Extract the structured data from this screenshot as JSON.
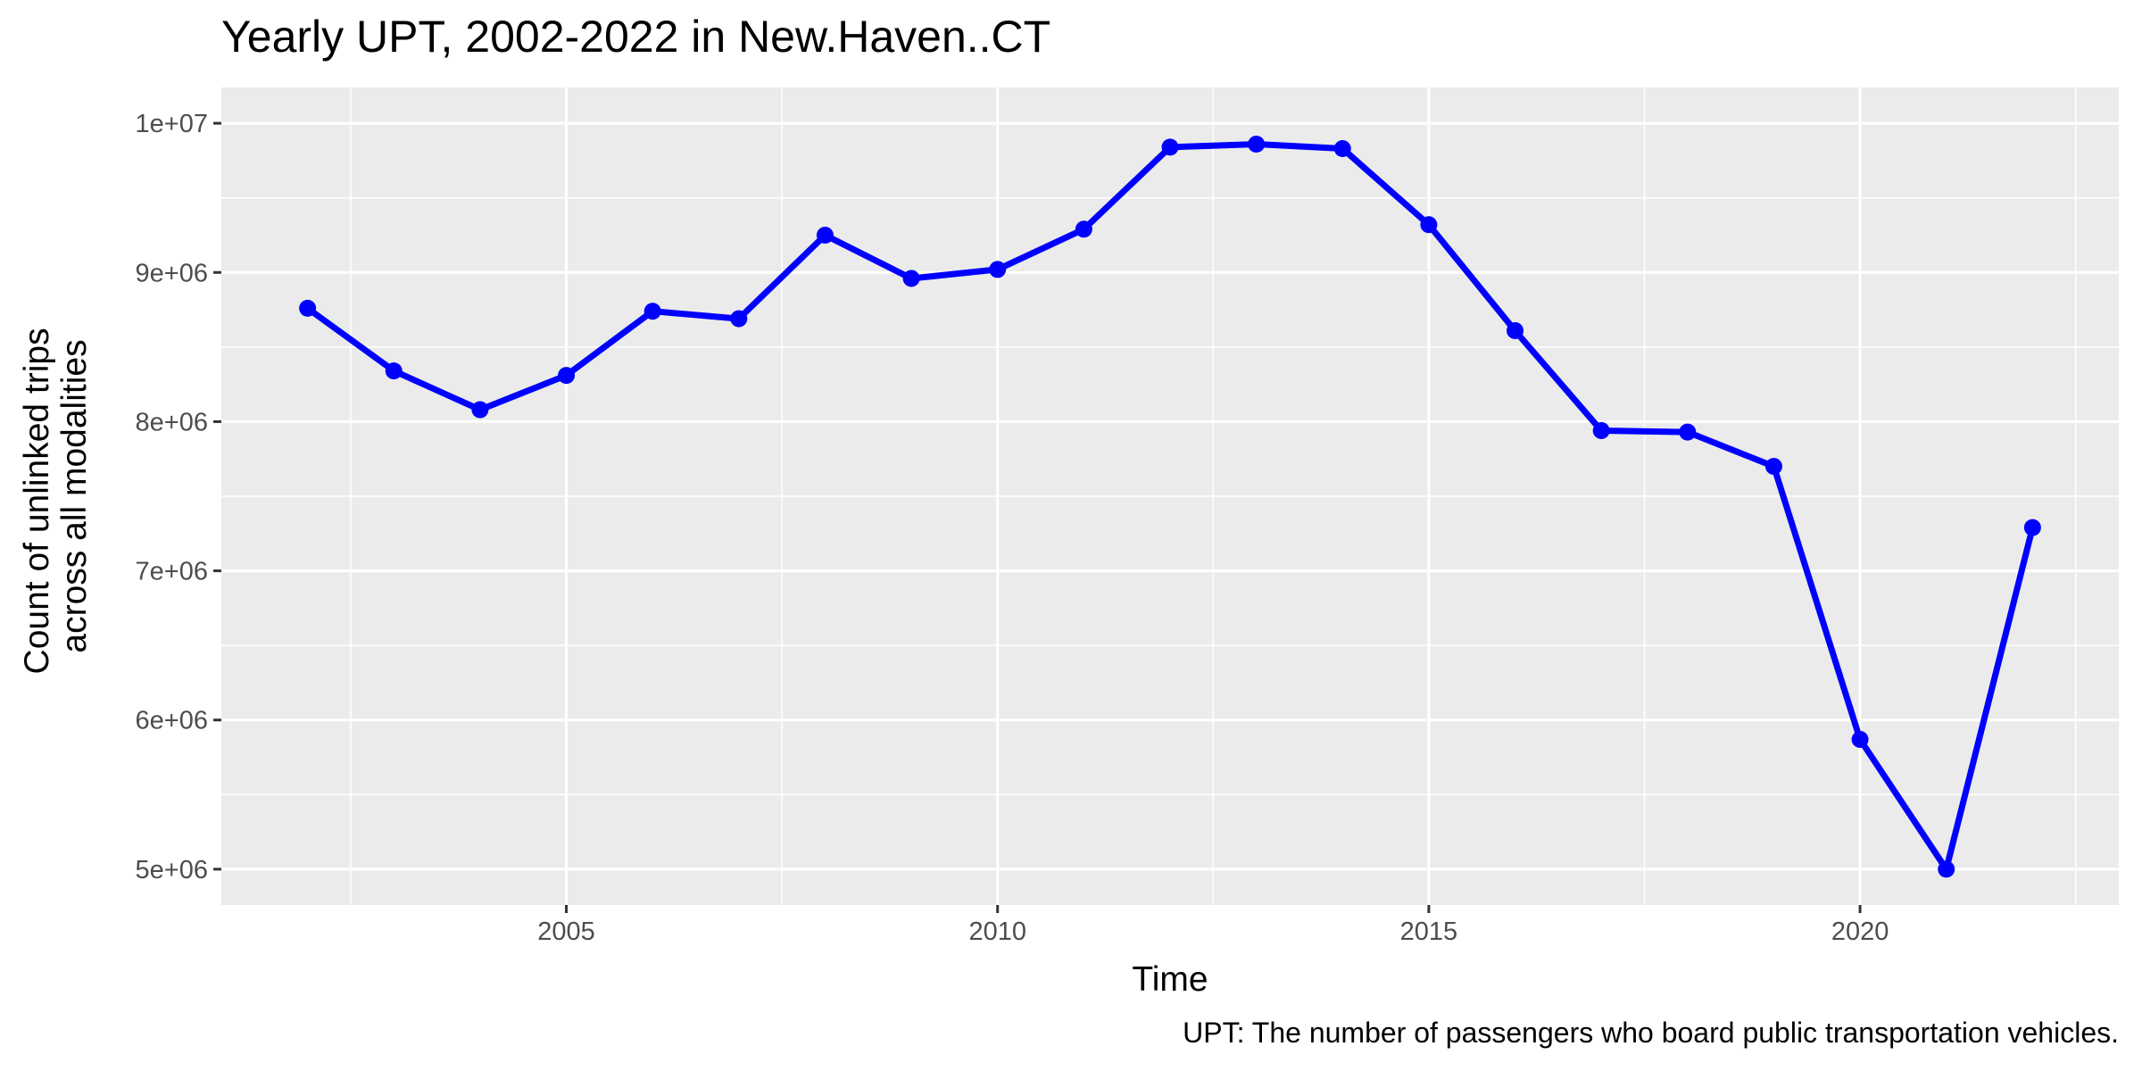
{
  "chart_data": {
    "type": "line",
    "title": "Yearly UPT, 2002-2022 in New.Haven..CT",
    "xlabel": "Time",
    "ylabel_lines": [
      "Count of unlinked trips",
      "across all modalities"
    ],
    "caption": "UPT: The number of passengers who board public transportation vehicles.",
    "x": [
      2002,
      2003,
      2004,
      2005,
      2006,
      2007,
      2008,
      2009,
      2010,
      2011,
      2012,
      2013,
      2014,
      2015,
      2016,
      2017,
      2018,
      2019,
      2020,
      2021,
      2022
    ],
    "series": [
      {
        "values": [
          8760000,
          8340000,
          8080000,
          8310000,
          8740000,
          8690000,
          9250000,
          8960000,
          9020000,
          9290000,
          9840000,
          9860000,
          9830000,
          9320000,
          8610000,
          7940000,
          7930000,
          7700000,
          5870000,
          5000000,
          7290000
        ],
        "color": "#0000ff"
      }
    ],
    "xlim": [
      2001.0,
      2023.0
    ],
    "ylim": [
      4760000,
      10240000
    ],
    "x_ticks": [
      2005,
      2010,
      2015,
      2020
    ],
    "x_tick_labels": [
      "2005",
      "2010",
      "2015",
      "2020"
    ],
    "x_minor": [
      2002.5,
      2007.5,
      2012.5,
      2017.5,
      2022.5
    ],
    "y_ticks": [
      5000000,
      6000000,
      7000000,
      8000000,
      9000000,
      10000000
    ],
    "y_tick_labels": [
      "5e+06",
      "6e+06",
      "7e+06",
      "8e+06",
      "9e+06",
      "1e+07"
    ],
    "y_minor": [
      5500000,
      6500000,
      7500000,
      8500000,
      9500000
    ],
    "grid": true,
    "legend": "none",
    "colors": {
      "panel": "#ebebeb",
      "grid": "#ffffff",
      "tick": "#333333",
      "line": "#0000ff"
    }
  }
}
